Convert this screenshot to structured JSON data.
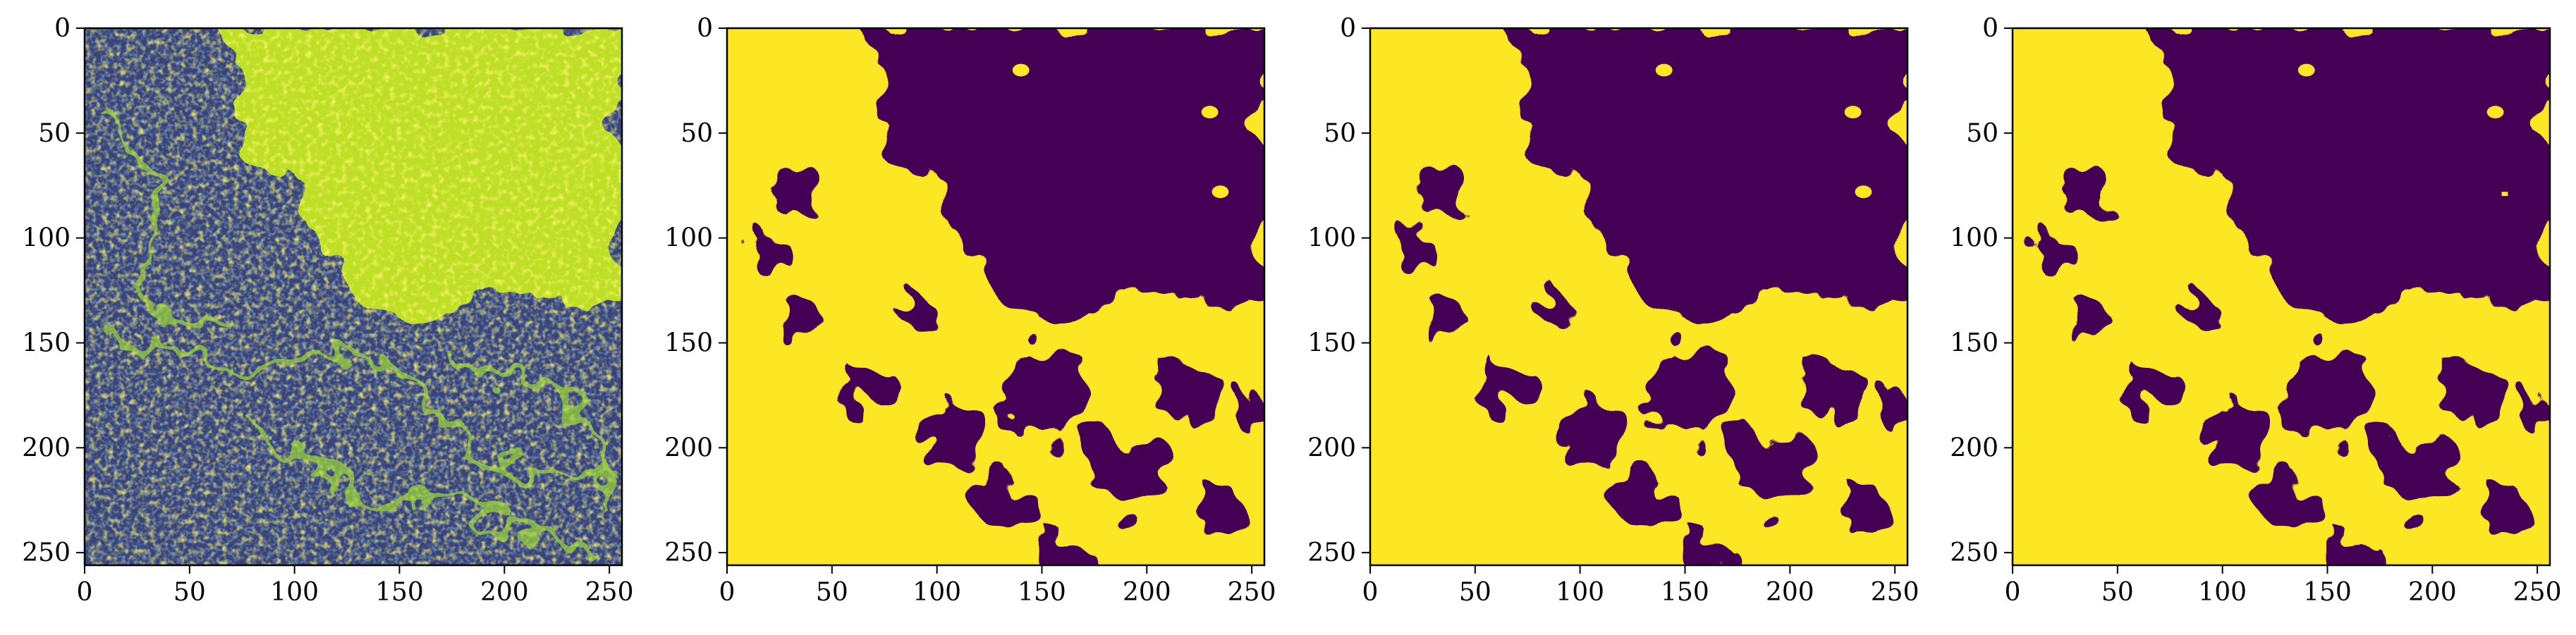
{
  "figure": {
    "panels": [
      {
        "id": "sar-intensity",
        "image_type": "speckled intensity image (viridis colormap)"
      },
      {
        "id": "segmentation-mask-1",
        "image_type": "binary segmentation mask (viridis colormap)"
      },
      {
        "id": "segmentation-mask-2",
        "image_type": "binary segmentation mask (viridis colormap)"
      },
      {
        "id": "segmentation-mask-3",
        "image_type": "binary segmentation mask (viridis colormap)"
      }
    ],
    "x_ticks": [
      "0",
      "50",
      "100",
      "150",
      "200",
      "250"
    ],
    "y_ticks": [
      "0",
      "50",
      "100",
      "150",
      "200",
      "250"
    ],
    "axis_range": [
      0,
      256
    ],
    "colors": {
      "low": "#440154",
      "mid": "#21918c",
      "high": "#fde725",
      "frame": "#000000"
    }
  }
}
